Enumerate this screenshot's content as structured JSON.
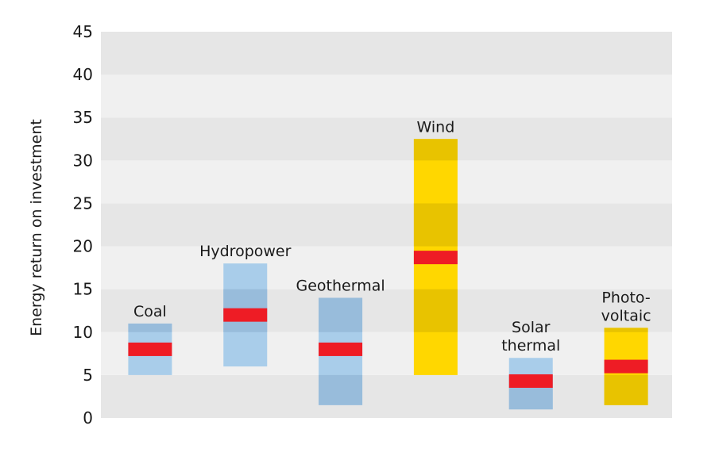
{
  "chart_data": {
    "type": "range-bar",
    "title": "",
    "xlabel": "",
    "ylabel": "Energy return on investment",
    "ylim": [
      0,
      45
    ],
    "yticks": [
      0,
      5,
      10,
      15,
      20,
      25,
      30,
      35,
      40,
      45
    ],
    "grid": "alternating horizontal bands",
    "legend": "none",
    "categories": [
      {
        "name": "Coal",
        "label_lines": [
          "Coal"
        ],
        "low": 5,
        "high": 11,
        "median": 8,
        "color": "#a9cdea"
      },
      {
        "name": "Hydropower",
        "label_lines": [
          "Hydropower"
        ],
        "low": 6,
        "high": 18,
        "median": 12,
        "color": "#a9cdea"
      },
      {
        "name": "Geothermal",
        "label_lines": [
          "Geothermal"
        ],
        "low": 1.5,
        "high": 14,
        "median": 8,
        "color": "#a9cdea"
      },
      {
        "name": "Wind",
        "label_lines": [
          "Wind"
        ],
        "low": 5,
        "high": 32.5,
        "median": 18.7,
        "color": "#ffd700"
      },
      {
        "name": "Solar thermal",
        "label_lines": [
          "Solar",
          "thermal"
        ],
        "low": 1,
        "high": 7,
        "median": 4.3,
        "color": "#a9cdea"
      },
      {
        "name": "Photo-voltaic",
        "label_lines": [
          "Photo-",
          "voltaic"
        ],
        "low": 1.5,
        "high": 10.5,
        "median": 6,
        "color": "#ffd700"
      }
    ],
    "colors": {
      "band_light": "#f0f0f0",
      "band_dark": "#e6e6e6",
      "bar_blue": "#a9cdea",
      "bar_blue_on_band": "#98bcdb",
      "bar_yellow": "#ffd700",
      "bar_yellow_on_band": "#e8c300",
      "median": "#ee1c25",
      "text": "#1a1a1a"
    }
  }
}
